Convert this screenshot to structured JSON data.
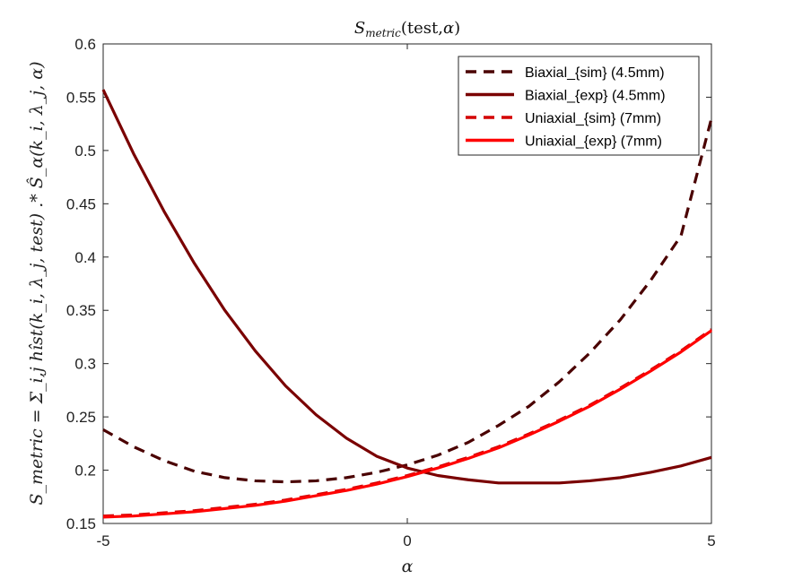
{
  "chart_data": {
    "type": "line",
    "title": {
      "main": "S",
      "sub": "metric",
      "rest": "(test,",
      "alpha": "α",
      "close": ")"
    },
    "xlabel": "α",
    "ylabel": "S_metric = Σ_i,j hîst(k_i, λ_j, test) .* Ŝ_α(k_i, λ_j, α)",
    "xlim": [
      -5,
      5
    ],
    "ylim": [
      0.15,
      0.6
    ],
    "xticks": [
      -5,
      0,
      5
    ],
    "xtick_labels": [
      "-5",
      "0",
      "5"
    ],
    "yticks": [
      0.15,
      0.2,
      0.25,
      0.3,
      0.35,
      0.4,
      0.45,
      0.5,
      0.55,
      0.6
    ],
    "ytick_labels": [
      "0.15",
      "0.2",
      "0.25",
      "0.3",
      "0.35",
      "0.4",
      "0.45",
      "0.5",
      "0.55",
      "0.6"
    ],
    "grid": false,
    "legend_position": "top-right",
    "x": [
      -5,
      -4.5,
      -4,
      -3.5,
      -3,
      -2.5,
      -2,
      -1.5,
      -1,
      -0.5,
      0,
      0.5,
      1,
      1.5,
      2,
      2.5,
      3,
      3.5,
      4,
      4.5,
      5
    ],
    "series": [
      {
        "name": "Biaxial_{sim} (4.5mm)",
        "color": "#4a0000",
        "dash": true,
        "values": [
          0.238,
          0.222,
          0.209,
          0.199,
          0.193,
          0.19,
          0.189,
          0.19,
          0.193,
          0.198,
          0.205,
          0.214,
          0.226,
          0.242,
          0.26,
          0.283,
          0.31,
          0.341,
          0.378,
          0.42,
          0.53
        ]
      },
      {
        "name": "Biaxial_{exp} (4.5mm)",
        "color": "#7a0000",
        "dash": false,
        "values": [
          0.557,
          0.497,
          0.443,
          0.394,
          0.35,
          0.312,
          0.279,
          0.252,
          0.23,
          0.213,
          0.202,
          0.195,
          0.191,
          0.188,
          0.188,
          0.188,
          0.19,
          0.193,
          0.198,
          0.204,
          0.212
        ]
      },
      {
        "name": "Uniaxial_{sim} (7mm)",
        "color": "#d40000",
        "dash": true,
        "values": [
          0.157,
          0.158,
          0.16,
          0.162,
          0.165,
          0.168,
          0.172,
          0.177,
          0.182,
          0.188,
          0.195,
          0.203,
          0.212,
          0.222,
          0.234,
          0.247,
          0.261,
          0.277,
          0.294,
          0.312,
          0.332
        ]
      },
      {
        "name": "Uniaxial_{exp} (7mm)",
        "color": "#ff0000",
        "dash": false,
        "values": [
          0.156,
          0.157,
          0.159,
          0.161,
          0.164,
          0.167,
          0.171,
          0.176,
          0.181,
          0.187,
          0.194,
          0.202,
          0.211,
          0.221,
          0.233,
          0.246,
          0.26,
          0.276,
          0.293,
          0.311,
          0.331
        ]
      }
    ]
  }
}
